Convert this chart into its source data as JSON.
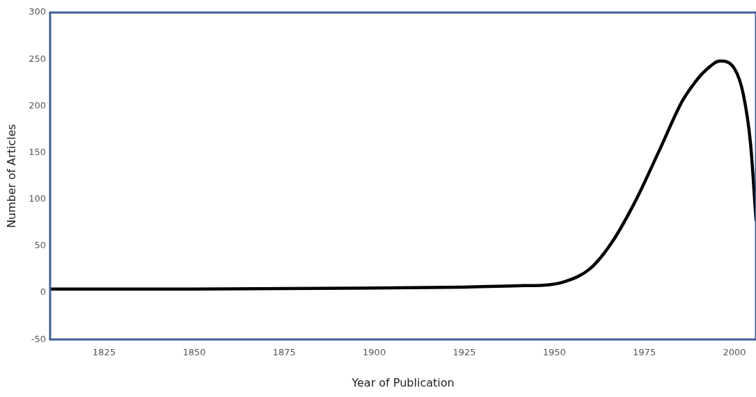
{
  "chart_data": {
    "type": "line",
    "xlabel": "Year of Publication",
    "ylabel": "Number of Articles",
    "x": [
      1810,
      1850,
      1900,
      1925,
      1940,
      1947,
      1953,
      1960,
      1966,
      1972.5,
      1979,
      1985.5,
      1989,
      1992,
      1996,
      2000,
      2002.5,
      2004.5,
      2006
    ],
    "series": [
      {
        "color": "#000000",
        "values": [
          4,
          4,
          5,
          6,
          7.5,
          8,
          12,
          26,
          54,
          98,
          151,
          205,
          225,
          238,
          248,
          240,
          212,
          159,
          78
        ]
      }
    ],
    "xlim": [
      1810,
      2006
    ],
    "xticks": [
      1825,
      1850,
      1875,
      1900,
      1925,
      1950,
      1975,
      2000
    ],
    "ylim": [
      -50,
      300
    ],
    "yticks": [
      -50,
      0,
      50,
      100,
      150,
      200,
      250,
      300
    ],
    "grid": false,
    "legend": false,
    "marker": "none",
    "line_style": "solid"
  }
}
